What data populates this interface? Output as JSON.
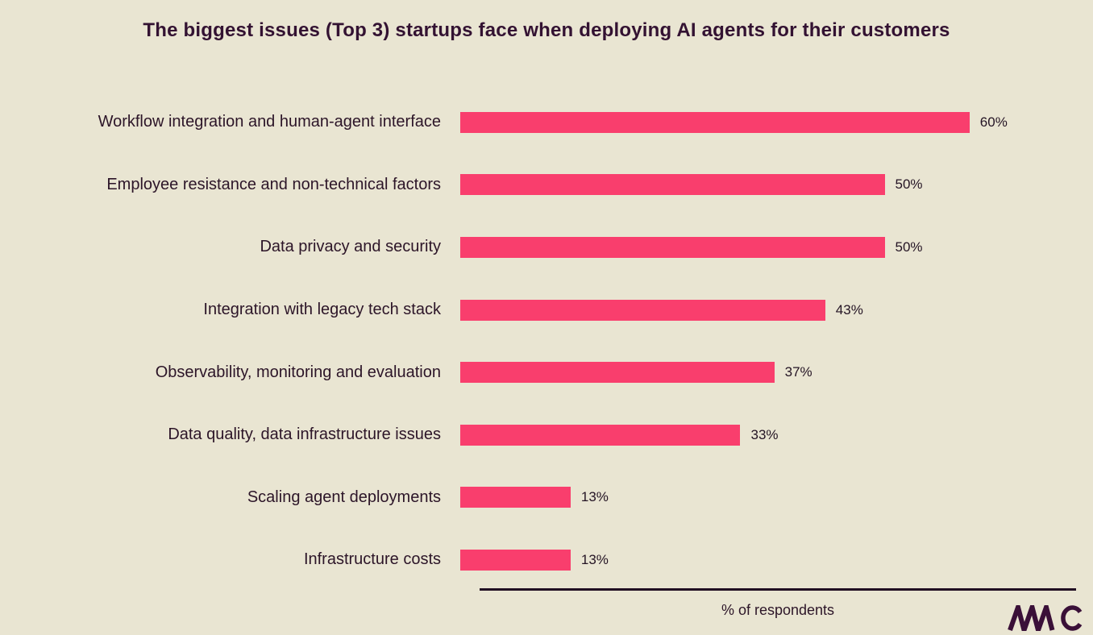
{
  "title": "The biggest issues (Top 3) startups face when deploying AI agents for their customers",
  "x_axis_label": "% of respondents",
  "logo_text": "MMC",
  "colors": {
    "background": "#e9e5d2",
    "bar": "#f93e6d",
    "title_text": "#331232",
    "label_text": "#2c1528",
    "axis": "#200d22",
    "logo": "#3a1038"
  },
  "chart_data": {
    "type": "bar",
    "orientation": "horizontal",
    "title": "The biggest issues (Top 3) startups face when deploying AI agents for their customers",
    "xlabel": "% of respondents",
    "ylabel": "",
    "xlim": [
      0,
      70
    ],
    "grid": false,
    "legend": false,
    "categories": [
      "Workflow integration and human-agent interface",
      "Employee resistance and non-technical factors",
      "Data privacy and security",
      "Integration with legacy tech stack",
      "Observability, monitoring and evaluation",
      "Data quality, data infrastructure issues",
      "Scaling agent deployments",
      "Infrastructure costs"
    ],
    "values": [
      60,
      50,
      50,
      43,
      37,
      33,
      13,
      13
    ],
    "value_labels": [
      "60%",
      "50%",
      "50%",
      "43%",
      "37%",
      "33%",
      "13%",
      "13%"
    ]
  }
}
